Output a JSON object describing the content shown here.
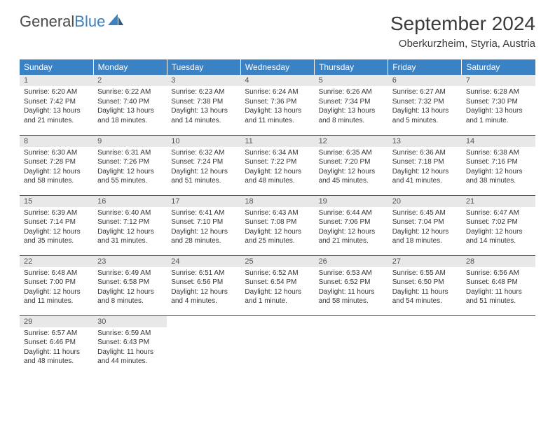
{
  "brand": {
    "part1": "General",
    "part2": "Blue"
  },
  "title": "September 2024",
  "location": "Oberkurzheim, Styria, Austria",
  "colors": {
    "header_bg": "#3b82c4",
    "header_text": "#ffffff",
    "daynum_bg": "#e8e8e8",
    "daynum_text": "#555555",
    "body_text": "#333333",
    "row_border": "#2a5a8a",
    "page_bg": "#ffffff"
  },
  "weekdays": [
    "Sunday",
    "Monday",
    "Tuesday",
    "Wednesday",
    "Thursday",
    "Friday",
    "Saturday"
  ],
  "days": [
    {
      "n": "1",
      "sunrise": "6:20 AM",
      "sunset": "7:42 PM",
      "daylight": "13 hours and 21 minutes."
    },
    {
      "n": "2",
      "sunrise": "6:22 AM",
      "sunset": "7:40 PM",
      "daylight": "13 hours and 18 minutes."
    },
    {
      "n": "3",
      "sunrise": "6:23 AM",
      "sunset": "7:38 PM",
      "daylight": "13 hours and 14 minutes."
    },
    {
      "n": "4",
      "sunrise": "6:24 AM",
      "sunset": "7:36 PM",
      "daylight": "13 hours and 11 minutes."
    },
    {
      "n": "5",
      "sunrise": "6:26 AM",
      "sunset": "7:34 PM",
      "daylight": "13 hours and 8 minutes."
    },
    {
      "n": "6",
      "sunrise": "6:27 AM",
      "sunset": "7:32 PM",
      "daylight": "13 hours and 5 minutes."
    },
    {
      "n": "7",
      "sunrise": "6:28 AM",
      "sunset": "7:30 PM",
      "daylight": "13 hours and 1 minute."
    },
    {
      "n": "8",
      "sunrise": "6:30 AM",
      "sunset": "7:28 PM",
      "daylight": "12 hours and 58 minutes."
    },
    {
      "n": "9",
      "sunrise": "6:31 AM",
      "sunset": "7:26 PM",
      "daylight": "12 hours and 55 minutes."
    },
    {
      "n": "10",
      "sunrise": "6:32 AM",
      "sunset": "7:24 PM",
      "daylight": "12 hours and 51 minutes."
    },
    {
      "n": "11",
      "sunrise": "6:34 AM",
      "sunset": "7:22 PM",
      "daylight": "12 hours and 48 minutes."
    },
    {
      "n": "12",
      "sunrise": "6:35 AM",
      "sunset": "7:20 PM",
      "daylight": "12 hours and 45 minutes."
    },
    {
      "n": "13",
      "sunrise": "6:36 AM",
      "sunset": "7:18 PM",
      "daylight": "12 hours and 41 minutes."
    },
    {
      "n": "14",
      "sunrise": "6:38 AM",
      "sunset": "7:16 PM",
      "daylight": "12 hours and 38 minutes."
    },
    {
      "n": "15",
      "sunrise": "6:39 AM",
      "sunset": "7:14 PM",
      "daylight": "12 hours and 35 minutes."
    },
    {
      "n": "16",
      "sunrise": "6:40 AM",
      "sunset": "7:12 PM",
      "daylight": "12 hours and 31 minutes."
    },
    {
      "n": "17",
      "sunrise": "6:41 AM",
      "sunset": "7:10 PM",
      "daylight": "12 hours and 28 minutes."
    },
    {
      "n": "18",
      "sunrise": "6:43 AM",
      "sunset": "7:08 PM",
      "daylight": "12 hours and 25 minutes."
    },
    {
      "n": "19",
      "sunrise": "6:44 AM",
      "sunset": "7:06 PM",
      "daylight": "12 hours and 21 minutes."
    },
    {
      "n": "20",
      "sunrise": "6:45 AM",
      "sunset": "7:04 PM",
      "daylight": "12 hours and 18 minutes."
    },
    {
      "n": "21",
      "sunrise": "6:47 AM",
      "sunset": "7:02 PM",
      "daylight": "12 hours and 14 minutes."
    },
    {
      "n": "22",
      "sunrise": "6:48 AM",
      "sunset": "7:00 PM",
      "daylight": "12 hours and 11 minutes."
    },
    {
      "n": "23",
      "sunrise": "6:49 AM",
      "sunset": "6:58 PM",
      "daylight": "12 hours and 8 minutes."
    },
    {
      "n": "24",
      "sunrise": "6:51 AM",
      "sunset": "6:56 PM",
      "daylight": "12 hours and 4 minutes."
    },
    {
      "n": "25",
      "sunrise": "6:52 AM",
      "sunset": "6:54 PM",
      "daylight": "12 hours and 1 minute."
    },
    {
      "n": "26",
      "sunrise": "6:53 AM",
      "sunset": "6:52 PM",
      "daylight": "11 hours and 58 minutes."
    },
    {
      "n": "27",
      "sunrise": "6:55 AM",
      "sunset": "6:50 PM",
      "daylight": "11 hours and 54 minutes."
    },
    {
      "n": "28",
      "sunrise": "6:56 AM",
      "sunset": "6:48 PM",
      "daylight": "11 hours and 51 minutes."
    },
    {
      "n": "29",
      "sunrise": "6:57 AM",
      "sunset": "6:46 PM",
      "daylight": "11 hours and 48 minutes."
    },
    {
      "n": "30",
      "sunrise": "6:59 AM",
      "sunset": "6:43 PM",
      "daylight": "11 hours and 44 minutes."
    }
  ],
  "labels": {
    "sunrise": "Sunrise:",
    "sunset": "Sunset:",
    "daylight": "Daylight:"
  },
  "grid": {
    "cols": 7,
    "rows": 5,
    "start_weekday": 0,
    "total_days": 30
  }
}
